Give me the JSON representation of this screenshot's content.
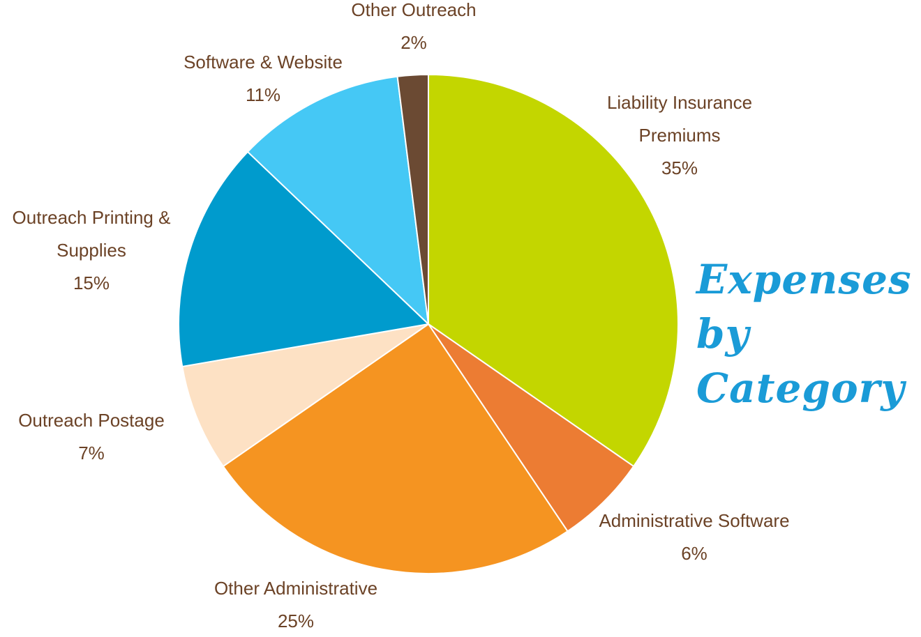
{
  "chart_data": {
    "type": "pie",
    "title": "Expenses\nby\nCategory",
    "slices": [
      {
        "name": "Liability Insurance Premiums",
        "label_lines": [
          "Liability Insurance",
          "Premiums"
        ],
        "percent_label": "35%",
        "value": 35,
        "color": "#c3d600"
      },
      {
        "name": "Administrative Software",
        "label_lines": [
          "Administrative Software"
        ],
        "percent_label": "6%",
        "value": 6,
        "color": "#ec7c33"
      },
      {
        "name": "Other Administrative",
        "label_lines": [
          "Other Administrative"
        ],
        "percent_label": "25%",
        "value": 25,
        "color": "#f59421"
      },
      {
        "name": "Outreach Postage",
        "label_lines": [
          "Outreach Postage"
        ],
        "percent_label": "7%",
        "value": 7,
        "color": "#fde1c4"
      },
      {
        "name": "Outreach Printing & Supplies",
        "label_lines": [
          "Outreach Printing &",
          "Supplies"
        ],
        "percent_label": "15%",
        "value": 15,
        "color": "#009bcd"
      },
      {
        "name": "Software & Website",
        "label_lines": [
          "Software & Website"
        ],
        "percent_label": "11%",
        "value": 11,
        "color": "#45c8f5"
      },
      {
        "name": "Other Outreach",
        "label_lines": [
          "Other Outreach"
        ],
        "percent_label": "2%",
        "value": 2,
        "color": "#6b4a33"
      }
    ],
    "label_color": "#6b4226",
    "title_color": "#1a9bd7"
  }
}
